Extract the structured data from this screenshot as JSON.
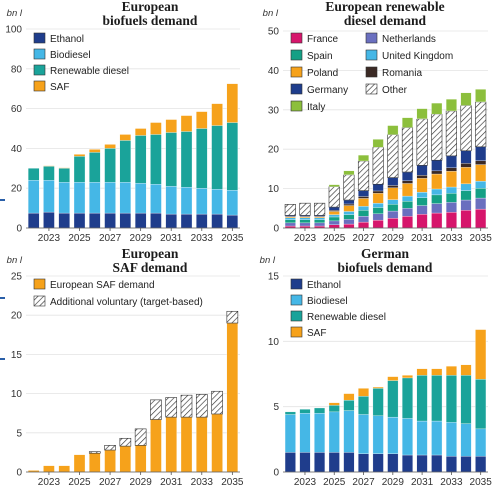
{
  "patterns": {
    "hatch": "#ffffff"
  },
  "chart_data": [
    {
      "type": "bar",
      "stacked": true,
      "title_lines": [
        "European",
        "biofuels demand"
      ],
      "unit": "bn l",
      "ylim": [
        0,
        100
      ],
      "yticks": [
        0,
        20,
        40,
        60,
        80,
        100
      ],
      "xtick_labels": [
        "2023",
        "2025",
        "2027",
        "2029",
        "2031",
        "2033",
        "2035"
      ],
      "categories": [
        "2022",
        "2023",
        "2024",
        "2025",
        "2026",
        "2027",
        "2028",
        "2029",
        "2030",
        "2031",
        "2032",
        "2033",
        "2034",
        "2035"
      ],
      "legend_position": "top-left",
      "series": [
        {
          "name": "Ethanol",
          "color": "#1f3d8c",
          "values": [
            7.5,
            8,
            7.5,
            7.5,
            7.5,
            7.5,
            7.5,
            7.5,
            7.5,
            7,
            7,
            7,
            7,
            6.5
          ]
        },
        {
          "name": "Biodiesel",
          "color": "#45b7e6",
          "values": [
            16.5,
            16,
            15.5,
            15.5,
            15.5,
            15.5,
            15.5,
            15,
            14.5,
            14,
            13.5,
            13,
            12.5,
            12.5
          ]
        },
        {
          "name": "Renewable diesel",
          "color": "#1aa39a",
          "values": [
            6,
            7,
            7,
            13,
            15,
            17,
            21,
            24,
            25,
            27,
            28,
            30,
            32,
            34
          ]
        },
        {
          "name": "SAF",
          "color": "#f6a21b",
          "values": [
            0,
            0.3,
            0.3,
            1,
            1.5,
            2,
            3,
            3.5,
            6,
            6.5,
            8,
            8.5,
            11,
            19.5
          ]
        }
      ]
    },
    {
      "type": "bar",
      "stacked": true,
      "title_lines": [
        "European renewable",
        "diesel demand"
      ],
      "unit": "bn l",
      "ylim": [
        0,
        50
      ],
      "yticks": [
        0,
        10,
        20,
        30,
        40,
        50
      ],
      "xtick_labels": [
        "2023",
        "2025",
        "2027",
        "2029",
        "2031",
        "2033",
        "2035"
      ],
      "categories": [
        "2022",
        "2023",
        "2024",
        "2025",
        "2026",
        "2027",
        "2028",
        "2029",
        "2030",
        "2031",
        "2032",
        "2033",
        "2034",
        "2035"
      ],
      "legend_position": "top",
      "legend_columns": 2,
      "series": [
        {
          "name": "France",
          "color": "#d6156b",
          "values": [
            0.5,
            0.5,
            0.5,
            0.8,
            1,
            1.5,
            2,
            2.5,
            3,
            3.5,
            3.8,
            4,
            4.5,
            4.8
          ]
        },
        {
          "name": "Netherlands",
          "color": "#6a6fbf",
          "values": [
            0.8,
            0.8,
            0.8,
            1,
            1.2,
            1.5,
            1.6,
            1.8,
            2,
            2.2,
            2.4,
            2.5,
            2.6,
            2.8
          ]
        },
        {
          "name": "Spain",
          "color": "#14a085",
          "values": [
            0.8,
            0.8,
            0.8,
            1,
            1.2,
            1.5,
            1.6,
            1.7,
            1.8,
            2,
            2.2,
            2.3,
            2.4,
            2.5
          ]
        },
        {
          "name": "United Kingdom",
          "color": "#45b7e6",
          "values": [
            0.5,
            0.5,
            0.5,
            0.6,
            0.8,
            1,
            1.1,
            1.2,
            1.3,
            1.4,
            1.5,
            1.6,
            1.7,
            1.8
          ]
        },
        {
          "name": "Poland",
          "color": "#f6a21b",
          "values": [
            0.3,
            0.3,
            0.3,
            0.8,
            1.5,
            2,
            2.5,
            3,
            3.2,
            3.5,
            3.8,
            4,
            4.2,
            4.2
          ]
        },
        {
          "name": "Romania",
          "color": "#3b2a25",
          "values": [
            0,
            0,
            0,
            0.3,
            0.4,
            0.5,
            0.6,
            0.6,
            0.7,
            0.8,
            0.8,
            0.9,
            1,
            1
          ]
        },
        {
          "name": "Germany",
          "color": "#1f3d8c",
          "values": [
            0.3,
            0.3,
            0.3,
            0.8,
            1,
            1.5,
            1.7,
            2,
            2.2,
            2.5,
            2.7,
            3,
            3.2,
            3.5
          ]
        },
        {
          "name": "Other",
          "color": "hatch",
          "values": [
            2.8,
            3.1,
            3.1,
            5.2,
            6.4,
            7.5,
            9.4,
            10.9,
            11.3,
            11.8,
            11.7,
            11.4,
            11.5,
            11.4
          ]
        },
        {
          "name": "Italy",
          "color": "#8cbf3c",
          "values": [
            0,
            0,
            0,
            0.5,
            1,
            1.5,
            2,
            2.3,
            2.5,
            2.6,
            2.8,
            3,
            3.2,
            3.2
          ]
        }
      ]
    },
    {
      "type": "bar",
      "stacked": true,
      "title_lines": [
        "European",
        "SAF demand"
      ],
      "unit": "bn l",
      "ylim": [
        0,
        25
      ],
      "yticks": [
        0,
        5,
        10,
        15,
        20,
        25
      ],
      "xtick_labels": [
        "2023",
        "2025",
        "2027",
        "2029",
        "2031",
        "2033",
        "2035"
      ],
      "categories": [
        "2022",
        "2023",
        "2024",
        "2025",
        "2026",
        "2027",
        "2028",
        "2029",
        "2030",
        "2031",
        "2032",
        "2033",
        "2034",
        "2035"
      ],
      "legend_position": "top-left",
      "series": [
        {
          "name": "European SAF demand",
          "color": "#f6a21b",
          "values": [
            0.2,
            0.8,
            0.8,
            2.2,
            2.4,
            2.8,
            3.3,
            3.4,
            6.7,
            7,
            7,
            7,
            7.4,
            19
          ]
        },
        {
          "name": "Additional voluntary (target-based)",
          "color": "hatch",
          "values": [
            0,
            0,
            0,
            0,
            0.2,
            0.6,
            1,
            2.1,
            2.5,
            2.5,
            2.8,
            2.9,
            2.9,
            1.5
          ]
        }
      ]
    },
    {
      "type": "bar",
      "stacked": true,
      "title_lines": [
        "German",
        "biofuels demand"
      ],
      "unit": "bn l",
      "ylim": [
        0,
        15
      ],
      "yticks": [
        0,
        5,
        10,
        15
      ],
      "xtick_labels": [
        "2023",
        "2025",
        "2027",
        "2029",
        "2031",
        "2033",
        "2035"
      ],
      "categories": [
        "2022",
        "2023",
        "2024",
        "2025",
        "2026",
        "2027",
        "2028",
        "2029",
        "2030",
        "2031",
        "2032",
        "2033",
        "2034",
        "2035"
      ],
      "legend_position": "top-left",
      "series": [
        {
          "name": "Ethanol",
          "color": "#1f3d8c",
          "values": [
            1.5,
            1.5,
            1.5,
            1.5,
            1.5,
            1.4,
            1.4,
            1.4,
            1.3,
            1.3,
            1.3,
            1.2,
            1.2,
            1.2
          ]
        },
        {
          "name": "Biodiesel",
          "color": "#45b7e6",
          "values": [
            2.9,
            3,
            3,
            3.1,
            3.2,
            3,
            2.9,
            2.8,
            2.8,
            2.6,
            2.6,
            2.6,
            2.5,
            2.1
          ]
        },
        {
          "name": "Renewable diesel",
          "color": "#1aa39a",
          "values": [
            0.2,
            0.3,
            0.4,
            0.5,
            0.8,
            1.4,
            2.1,
            2.8,
            3.1,
            3.5,
            3.5,
            3.6,
            3.7,
            3.8
          ]
        },
        {
          "name": "SAF",
          "color": "#f6a21b",
          "values": [
            0,
            0,
            0,
            0.2,
            0.5,
            0.6,
            0.1,
            0.3,
            0.2,
            0.5,
            0.5,
            0.7,
            0.8,
            3.8
          ]
        }
      ]
    }
  ]
}
